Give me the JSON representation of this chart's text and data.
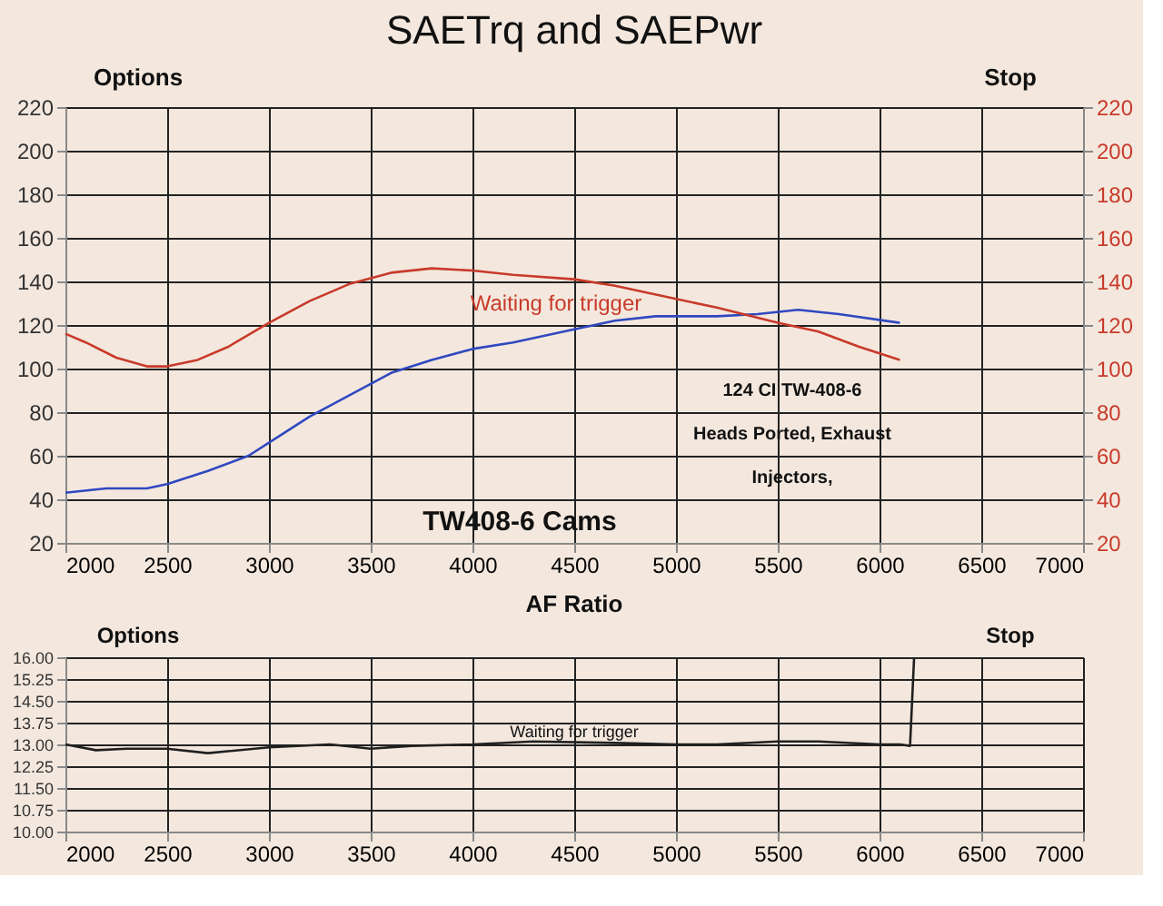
{
  "chart_data": [
    {
      "type": "line",
      "title": "SAETrq and SAEPwr",
      "xlim": [
        2000,
        7000
      ],
      "xticks": [
        2000,
        2500,
        3000,
        3500,
        4000,
        4500,
        5000,
        5500,
        6000,
        6500,
        7000
      ],
      "ylim": [
        20,
        220
      ],
      "yticks": [
        20,
        40,
        60,
        80,
        100,
        120,
        140,
        160,
        180,
        200,
        220
      ],
      "y2lim": [
        20,
        220
      ],
      "y2ticks": [
        20,
        40,
        60,
        80,
        100,
        120,
        140,
        160,
        180,
        200,
        220
      ],
      "grid": true,
      "annotations": [
        "Options",
        "Stop",
        "Waiting for trigger",
        "124 CI   TW-408-6",
        "Heads Ported, Exhaust",
        "Injectors,",
        "TW408-6 Cams"
      ],
      "series": [
        {
          "color": "#3048c0",
          "axis": "y",
          "x": [
            2000,
            2200,
            2400,
            2500,
            2700,
            2900,
            3000,
            3200,
            3400,
            3600,
            3800,
            4000,
            4200,
            4500,
            4700,
            4900,
            5200,
            5400,
            5600,
            5800,
            6100
          ],
          "values": [
            43,
            45,
            45,
            47,
            53,
            60,
            66,
            78,
            88,
            98,
            104,
            109,
            112,
            118,
            122,
            124,
            124,
            125,
            127,
            125,
            121
          ]
        },
        {
          "color": "#c83a2a",
          "axis": "y2",
          "x": [
            2000,
            2100,
            2250,
            2400,
            2500,
            2650,
            2800,
            3000,
            3200,
            3400,
            3600,
            3800,
            4000,
            4200,
            4500,
            4700,
            5000,
            5200,
            5500,
            5700,
            5900,
            6100
          ],
          "values": [
            116,
            112,
            105,
            101,
            101,
            104,
            110,
            121,
            131,
            139,
            144,
            146,
            145,
            143,
            141,
            138,
            132,
            128,
            121,
            117,
            110,
            104
          ]
        }
      ]
    },
    {
      "type": "line",
      "title": "AF Ratio",
      "xlim": [
        2000,
        7000
      ],
      "xticks": [
        2000,
        2500,
        3000,
        3500,
        4000,
        4500,
        5000,
        5500,
        6000,
        6500,
        7000
      ],
      "ylim": [
        10,
        16
      ],
      "yticks": [
        {
          "value": 10,
          "label": "10.00"
        },
        {
          "value": 10.75,
          "label": "10.75"
        },
        {
          "value": 11.5,
          "label": "11.50"
        },
        {
          "value": 12.25,
          "label": "12.25"
        },
        {
          "value": 13,
          "label": "13.00"
        },
        {
          "value": 13.75,
          "label": "13.75"
        },
        {
          "value": 14.5,
          "label": "14.50"
        },
        {
          "value": 15.25,
          "label": "15.25"
        },
        {
          "value": 16,
          "label": "16.00"
        }
      ],
      "grid": true,
      "annotations": [
        "Options",
        "Stop",
        "Waiting for trigger"
      ],
      "series": [
        {
          "color": "#202020",
          "x": [
            2000,
            2150,
            2300,
            2500,
            2700,
            3000,
            3300,
            3500,
            3700,
            4000,
            4300,
            4700,
            5000,
            5200,
            5500,
            5700,
            6000,
            6100,
            6150,
            6170
          ],
          "values": [
            13.0,
            12.8,
            12.85,
            12.85,
            12.7,
            12.9,
            13.0,
            12.85,
            12.95,
            13.0,
            13.1,
            13.05,
            13.0,
            13.0,
            13.1,
            13.1,
            13.0,
            13.0,
            12.95,
            16.0
          ]
        }
      ]
    }
  ]
}
